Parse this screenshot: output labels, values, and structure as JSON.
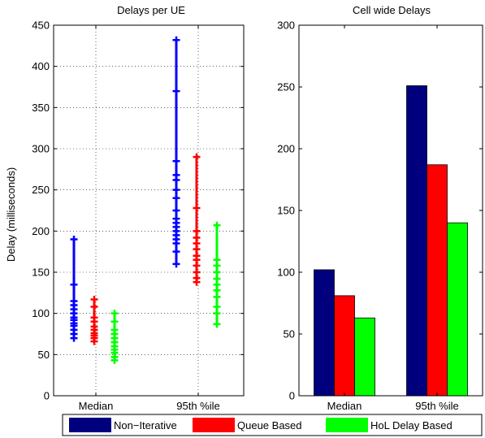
{
  "legend": {
    "entries": [
      {
        "label": "Non−Iterative",
        "color": "#00007f"
      },
      {
        "label": "Queue Based",
        "color": "#ff0000"
      },
      {
        "label": "HoL Delay Based",
        "color": "#00ff00"
      }
    ]
  },
  "chart_data": [
    {
      "type": "scatter",
      "title": "Delays per UE",
      "xlabel": "",
      "ylabel": "Delay (milliseconds)",
      "categories": [
        "Median",
        "95th %ile"
      ],
      "ylim": [
        0,
        450
      ],
      "yticks": [
        0,
        50,
        100,
        150,
        200,
        250,
        300,
        350,
        400,
        450
      ],
      "grid": true,
      "series": [
        {
          "name": "Non−Iterative",
          "color": "#0000ff",
          "values": [
            [
              70,
              75,
              80,
              85,
              88,
              92,
              95,
              100,
              105,
              110,
              115,
              135,
              190
            ],
            [
              160,
              175,
              185,
              190,
              195,
              200,
              205,
              210,
              215,
              225,
              240,
              250,
              262,
              268,
              285,
              370,
              432
            ]
          ]
        },
        {
          "name": "Queue Based",
          "color": "#ff0000",
          "values": [
            [
              66,
              70,
              73,
              76,
              80,
              84,
              90,
              95,
              108,
              117
            ],
            [
              138,
              143,
              150,
              158,
              165,
              170,
              178,
              185,
              192,
              200,
              228,
              290
            ]
          ]
        },
        {
          "name": "HoL Delay Based",
          "color": "#00ff00",
          "values": [
            [
              43,
              47,
              52,
              56,
              60,
              65,
              70,
              75,
              80,
              90,
              100
            ],
            [
              87,
              100,
              108,
              120,
              128,
              135,
              142,
              150,
              158,
              165,
              207
            ]
          ]
        }
      ]
    },
    {
      "type": "bar",
      "title": "Cell wide Delays",
      "xlabel": "",
      "ylabel": "",
      "categories": [
        "Median",
        "95th %ile"
      ],
      "ylim": [
        0,
        300
      ],
      "yticks": [
        0,
        50,
        100,
        150,
        200,
        250,
        300
      ],
      "grid": false,
      "series": [
        {
          "name": "Non−Iterative",
          "color": "#00007f",
          "values": [
            102,
            251
          ]
        },
        {
          "name": "Queue Based",
          "color": "#ff0000",
          "values": [
            81,
            187
          ]
        },
        {
          "name": "HoL Delay Based",
          "color": "#00ff00",
          "values": [
            63,
            140
          ]
        }
      ]
    }
  ]
}
